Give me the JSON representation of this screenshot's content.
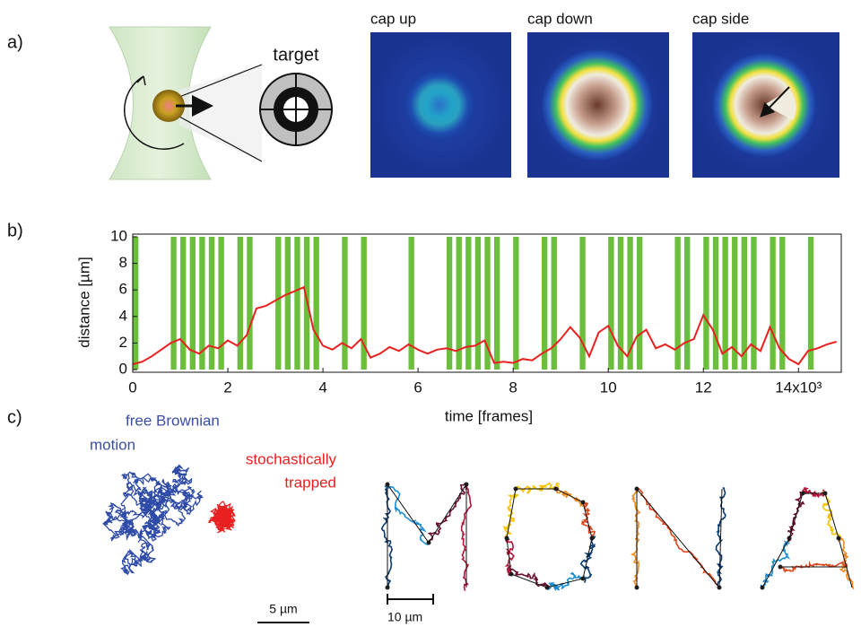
{
  "panel_labels": [
    "a)",
    "b)",
    "c)"
  ],
  "panel_a": {
    "target_label": "target",
    "image_labels": [
      "cap up",
      "cap down",
      "cap side"
    ]
  },
  "chart_data": {
    "type": "line",
    "xlabel": "time [frames]",
    "ylabel": "distance [µm]",
    "x": [
      0,
      200,
      400,
      600,
      800,
      1000,
      1200,
      1400,
      1600,
      1800,
      2000,
      2200,
      2400,
      2600,
      2800,
      3000,
      3200,
      3400,
      3600,
      3800,
      4000,
      4200,
      4400,
      4600,
      4800,
      5000,
      5200,
      5400,
      5600,
      5800,
      6000,
      6200,
      6400,
      6600,
      6800,
      7000,
      7200,
      7400,
      7600,
      7800,
      8000,
      8200,
      8400,
      8600,
      8800,
      9000,
      9200,
      9400,
      9600,
      9800,
      10000,
      10200,
      10400,
      10600,
      10800,
      11000,
      11200,
      11400,
      11600,
      11800,
      12000,
      12200,
      12400,
      12600,
      12800,
      13000,
      13200,
      13400,
      13600,
      13800,
      14000,
      14200,
      14400,
      14600,
      14800
    ],
    "series": [
      {
        "type": "bar",
        "color": "#6cbf3c",
        "values": [
          10,
          0,
          0,
          0,
          10,
          10,
          10,
          10,
          10,
          10,
          0,
          10,
          10,
          0,
          0,
          10,
          10,
          10,
          10,
          10,
          0,
          0,
          10,
          0,
          10,
          0,
          0,
          0,
          0,
          10,
          0,
          0,
          0,
          10,
          10,
          10,
          10,
          10,
          10,
          0,
          10,
          0,
          0,
          10,
          10,
          0,
          0,
          10,
          0,
          0,
          10,
          10,
          10,
          10,
          0,
          0,
          0,
          10,
          10,
          0,
          10,
          10,
          10,
          10,
          10,
          10,
          0,
          10,
          10,
          0,
          0,
          10,
          0,
          0,
          0
        ]
      },
      {
        "type": "line",
        "color": "#e8201f",
        "values": [
          0.4,
          0.6,
          1.0,
          1.5,
          2.0,
          2.3,
          1.5,
          1.2,
          1.8,
          1.6,
          2.2,
          1.8,
          2.6,
          4.6,
          4.8,
          5.2,
          5.6,
          5.9,
          6.2,
          3.0,
          1.8,
          1.5,
          2.0,
          1.6,
          2.3,
          0.9,
          1.2,
          1.7,
          1.4,
          1.9,
          1.5,
          1.2,
          1.5,
          1.6,
          1.4,
          1.7,
          1.8,
          2.2,
          0.5,
          0.6,
          0.5,
          0.8,
          0.7,
          1.2,
          1.6,
          2.3,
          3.2,
          2.4,
          1.0,
          2.8,
          3.3,
          1.8,
          1.0,
          2.5,
          3.0,
          1.6,
          1.9,
          1.5,
          2.0,
          2.3,
          4.1,
          3.0,
          1.2,
          1.7,
          1.0,
          1.9,
          1.4,
          3.2,
          1.6,
          0.8,
          0.4,
          1.4,
          1.6,
          1.9,
          2.1
        ]
      }
    ],
    "xlim": [
      0,
      14900
    ],
    "ylim": [
      -0.2,
      10.2
    ],
    "xticks": [
      0,
      {
        "value": 2000,
        "label": "2"
      },
      {
        "value": 4000,
        "label": "4"
      },
      {
        "value": 6000,
        "label": "6"
      },
      {
        "value": 8000,
        "label": "8"
      },
      {
        "value": 10000,
        "label": "10"
      },
      {
        "value": 12000,
        "label": "12"
      },
      {
        "value": 14000,
        "label": "14x10³"
      }
    ],
    "yticks": [
      0,
      2,
      4,
      6,
      8,
      10
    ]
  },
  "panel_c": {
    "free_label": [
      "free Brownian",
      "motion"
    ],
    "trapped_label": [
      "stochastically",
      "trapped"
    ],
    "scale_bar_left": "5 µm",
    "scale_bar_right": "10 µm"
  }
}
